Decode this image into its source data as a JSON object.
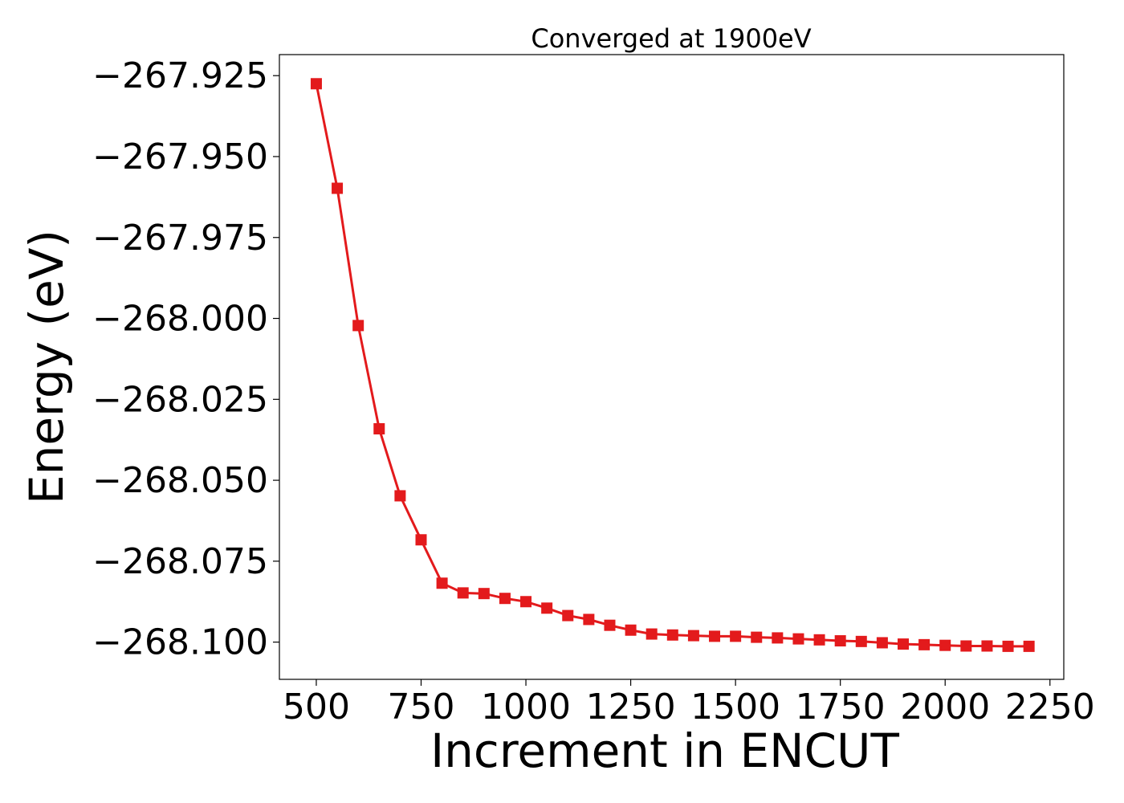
{
  "chart_data": {
    "type": "line",
    "title": "Converged at 1900eV",
    "xlabel": "Increment in ENCUT",
    "ylabel": "Energy (eV)",
    "xlim": [
      412,
      2283
    ],
    "ylim": [
      -268.1115,
      -267.9185
    ],
    "x_ticks": [
      500,
      750,
      1000,
      1250,
      1500,
      1750,
      2000,
      2250
    ],
    "x_tick_labels": [
      "500",
      "750",
      "1000",
      "1250",
      "1500",
      "1750",
      "2000",
      "2250"
    ],
    "y_ticks": [
      -267.925,
      -267.95,
      -267.975,
      -268.0,
      -268.025,
      -268.05,
      -268.075,
      -268.1
    ],
    "y_tick_labels": [
      "−267.925",
      "−267.950",
      "−267.975",
      "−268.000",
      "−268.025",
      "−268.050",
      "−268.075",
      "−268.100"
    ],
    "grid": false,
    "series": [
      {
        "color": "#e31a1c",
        "marker": "square",
        "x": [
          500,
          550,
          600,
          650,
          700,
          750,
          800,
          850,
          900,
          950,
          1000,
          1050,
          1100,
          1150,
          1200,
          1250,
          1300,
          1350,
          1400,
          1450,
          1500,
          1550,
          1600,
          1650,
          1700,
          1750,
          1800,
          1850,
          1900,
          1950,
          2000,
          2050,
          2100,
          2150,
          2200
        ],
        "y": [
          -267.9275,
          -267.9598,
          -268.0022,
          -268.0341,
          -268.0548,
          -268.0684,
          -268.0818,
          -268.0848,
          -268.085,
          -268.0865,
          -268.0875,
          -268.0895,
          -268.0918,
          -268.093,
          -268.0948,
          -268.0963,
          -268.0975,
          -268.0978,
          -268.098,
          -268.0982,
          -268.0982,
          -268.0985,
          -268.0987,
          -268.099,
          -268.0993,
          -268.0996,
          -268.0998,
          -268.1002,
          -268.1006,
          -268.1008,
          -268.101,
          -268.1012,
          -268.1012,
          -268.1013,
          -268.1013
        ]
      }
    ]
  }
}
